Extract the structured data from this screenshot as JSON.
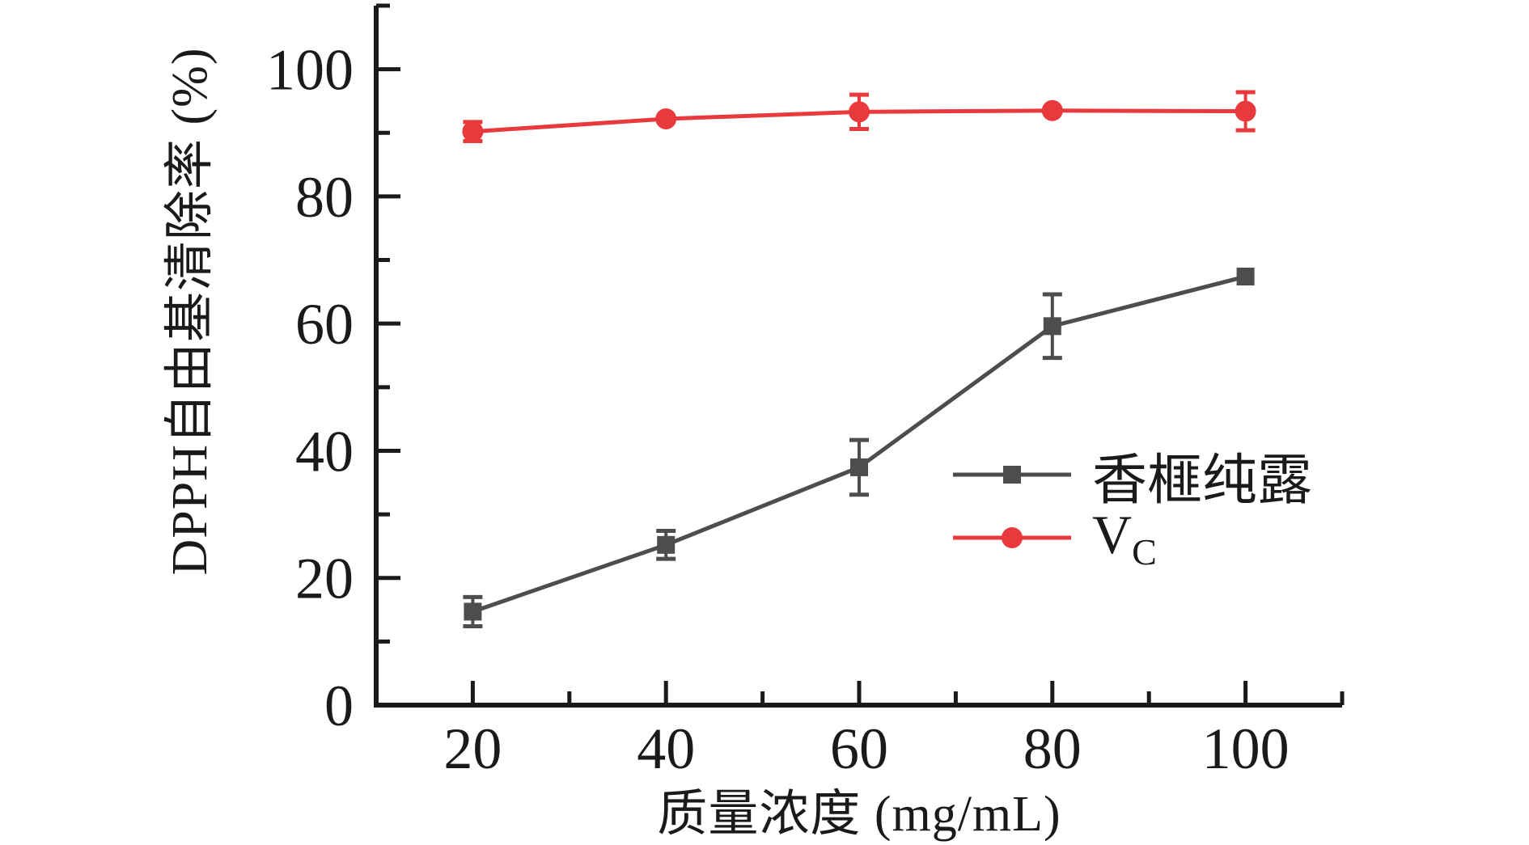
{
  "figure": {
    "background": "#ffffff",
    "axis_color": "#1a1a1a"
  },
  "chart_data": {
    "type": "line",
    "title": "",
    "xlabel": "质量浓度 (mg/mL)",
    "ylabel": "DPPH自由基清除率 (%)",
    "x": [
      20,
      40,
      60,
      80,
      100
    ],
    "xlim": [
      10,
      110
    ],
    "ylim": [
      0,
      110
    ],
    "x_major_ticks": [
      20,
      40,
      60,
      80,
      100
    ],
    "x_minor_ticks": [
      30,
      50,
      70,
      90,
      110
    ],
    "y_major_ticks": [
      0,
      20,
      40,
      60,
      80,
      100
    ],
    "y_minor_ticks": [
      10,
      30,
      50,
      70,
      90,
      110
    ],
    "grid": false,
    "legend_position": "center-right",
    "series": [
      {
        "name": "香榧纯露",
        "marker": "square",
        "color": "#4d4d4d",
        "values": [
          14.7,
          25.2,
          37.4,
          59.6,
          67.4
        ],
        "errors": [
          2.3,
          2.2,
          4.3,
          5.0,
          0.8
        ]
      },
      {
        "name": "VC",
        "legend_main": "V",
        "legend_sub": "C",
        "marker": "circle",
        "color": "#e8393c",
        "values": [
          90.2,
          92.2,
          93.3,
          93.5,
          93.4
        ],
        "errors": [
          1.5,
          0.6,
          2.7,
          0.6,
          3.0
        ]
      }
    ]
  }
}
